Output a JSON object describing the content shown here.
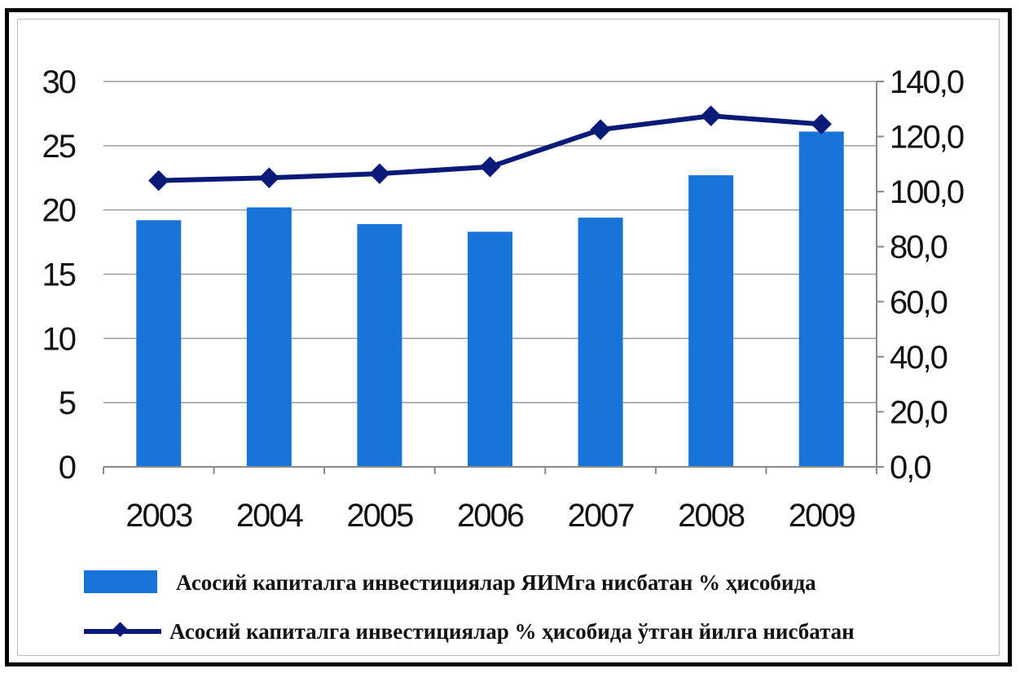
{
  "chart_data": {
    "type": "bar",
    "categories": [
      "2003",
      "2004",
      "2005",
      "2006",
      "2007",
      "2008",
      "2009"
    ],
    "series": [
      {
        "name": "Асосий капиталга инвестициялар ЯИМга нисбатан % ҳисобида",
        "type": "bar",
        "axis": "left",
        "color": "#1874d8",
        "values": [
          19.2,
          20.2,
          18.9,
          18.3,
          19.4,
          22.7,
          26.1
        ]
      },
      {
        "name": "Асосий капиталга инвестициялар % ҳисобида ўтган йилга нисбатан",
        "type": "line",
        "axis": "right",
        "color": "#0a1a78",
        "values": [
          104.0,
          105.0,
          106.5,
          109.0,
          122.5,
          127.5,
          124.5
        ]
      }
    ],
    "y_left": {
      "range": [
        0,
        30
      ],
      "ticks": [
        "0",
        "5",
        "10",
        "15",
        "20",
        "25",
        "30"
      ]
    },
    "y_right": {
      "range": [
        0,
        140
      ],
      "ticks": [
        "0,0",
        "20,0",
        "40,0",
        "60,0",
        "80,0",
        "100,0",
        "120,0",
        "140,0"
      ]
    },
    "grid": true,
    "legend_position": "bottom-left"
  }
}
